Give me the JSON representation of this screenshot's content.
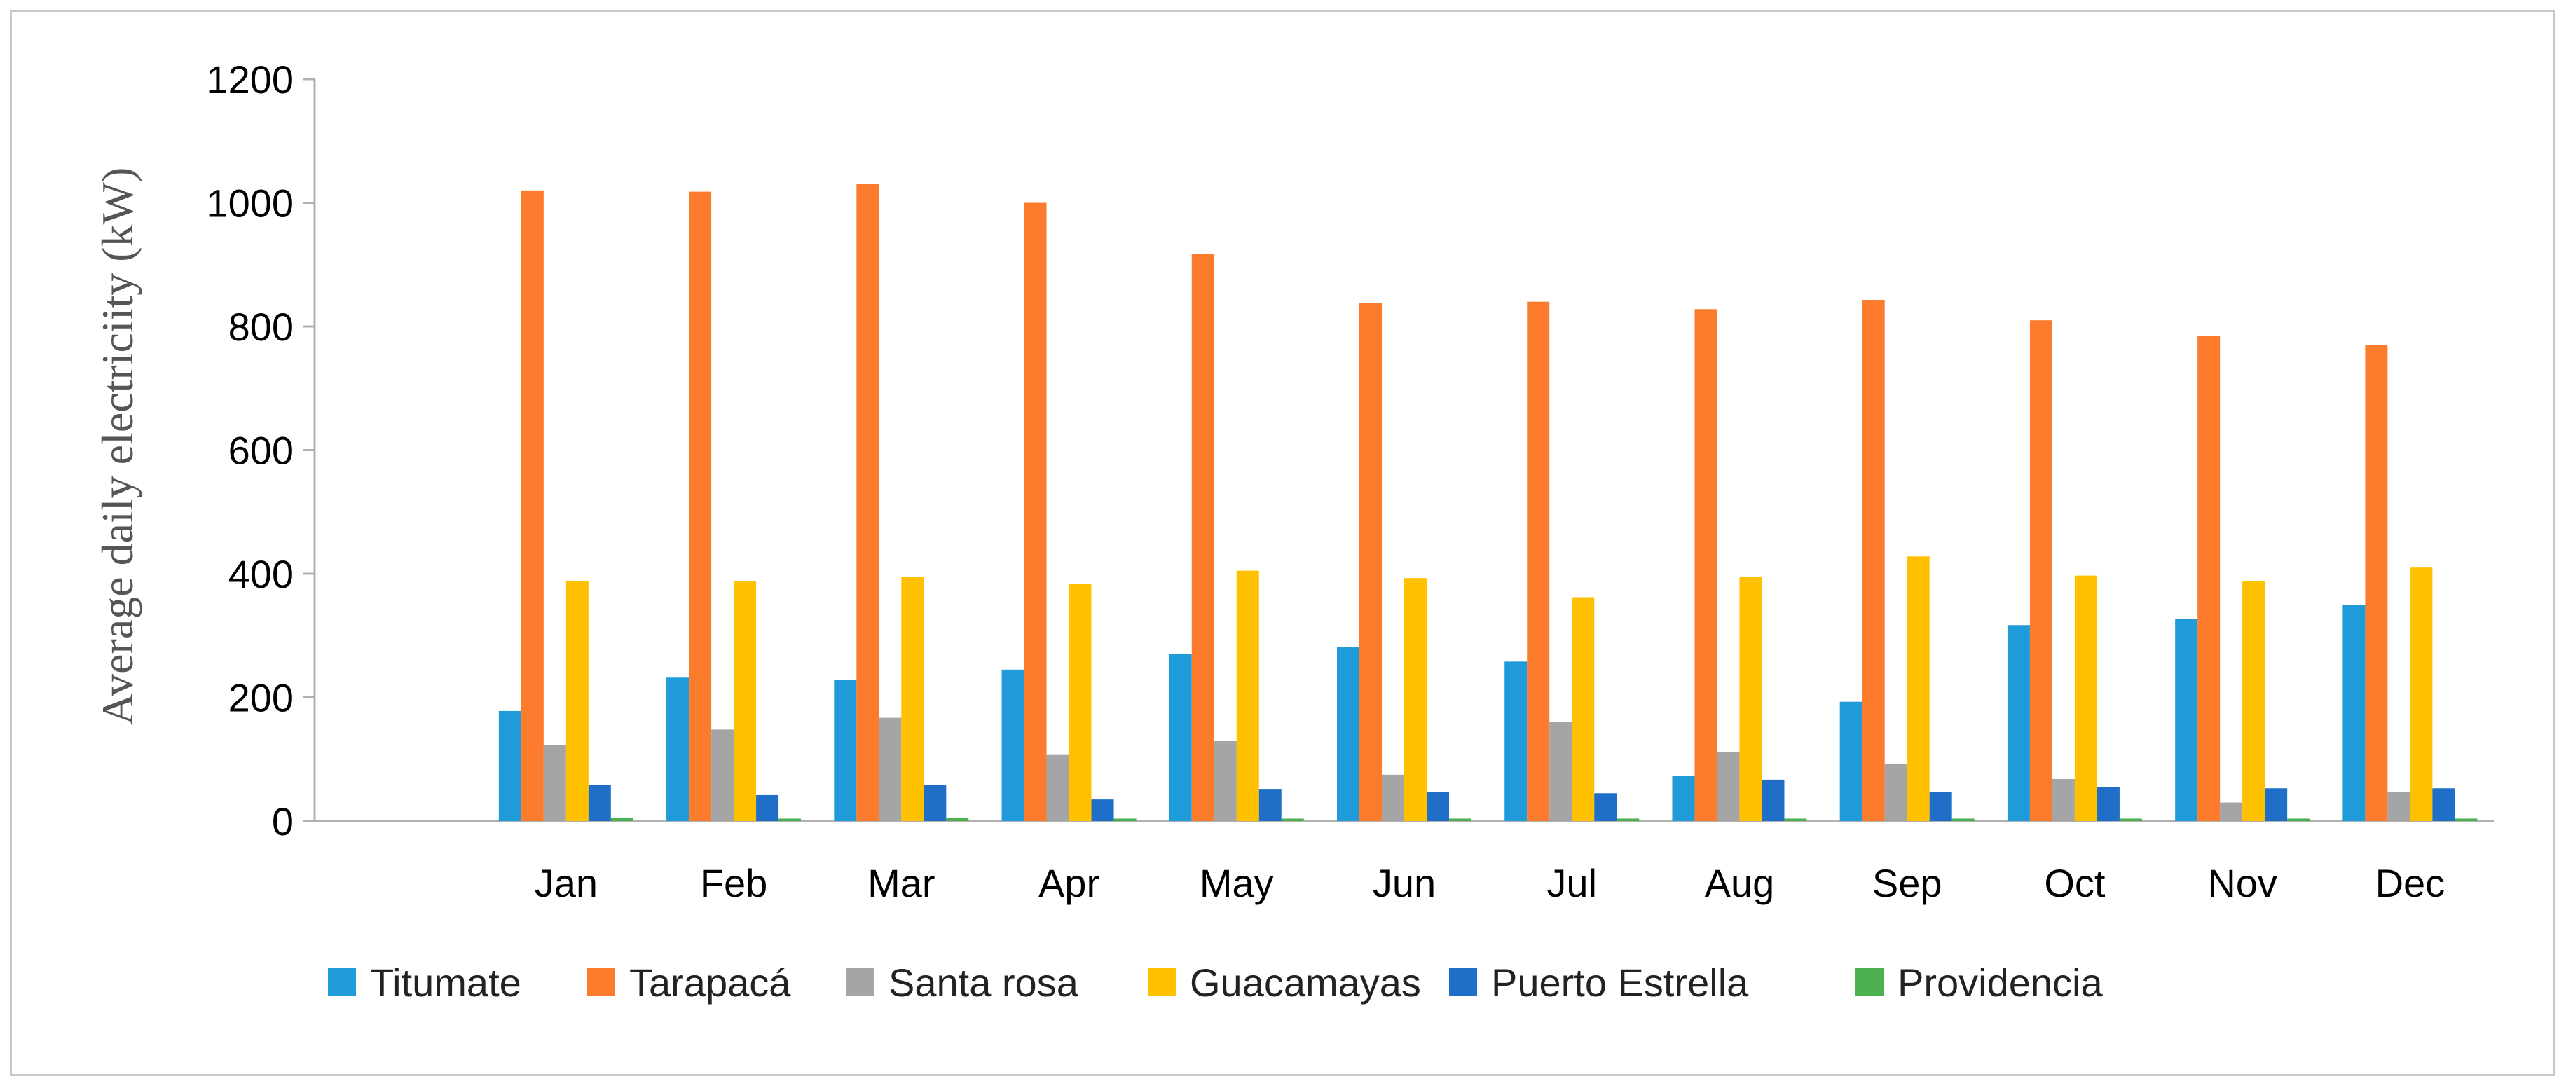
{
  "chart_data": {
    "type": "bar",
    "title": "",
    "xlabel": "",
    "ylabel": "Average daily electriciity (kW)",
    "ylim": [
      0,
      1200
    ],
    "yticks": [
      0,
      200,
      400,
      600,
      800,
      1000,
      1200
    ],
    "grid": false,
    "legend_position": "bottom",
    "categories": [
      "",
      "Jan",
      "Feb",
      "Mar",
      "Apr",
      "May",
      "Jun",
      "Jul",
      "Aug",
      "Sep",
      "Oct",
      "Nov",
      "Dec"
    ],
    "series": [
      {
        "name": "Titumate",
        "color": "#1f9bd9",
        "values": [
          0,
          178,
          232,
          228,
          245,
          270,
          282,
          258,
          73,
          193,
          317,
          327,
          350
        ]
      },
      {
        "name": "Tarapacá",
        "color": "#fd7b2c",
        "values": [
          0,
          1020,
          1018,
          1030,
          1000,
          917,
          838,
          840,
          828,
          843,
          810,
          785,
          770
        ]
      },
      {
        "name": "Santa rosa",
        "color": "#a5a5a5",
        "values": [
          0,
          123,
          148,
          167,
          108,
          130,
          75,
          160,
          112,
          93,
          68,
          30,
          47
        ]
      },
      {
        "name": "Guacamayas",
        "color": "#ffc000",
        "values": [
          0,
          388,
          388,
          395,
          383,
          405,
          393,
          362,
          395,
          428,
          397,
          388,
          410
        ]
      },
      {
        "name": "Puerto Estrella",
        "color": "#1f6fc8",
        "values": [
          0,
          58,
          42,
          58,
          35,
          52,
          47,
          45,
          67,
          47,
          55,
          53,
          53
        ]
      },
      {
        "name": "Providencia",
        "color": "#4caf50",
        "values": [
          0,
          5,
          4,
          5,
          4,
          4,
          4,
          4,
          4,
          4,
          4,
          4,
          4
        ]
      }
    ]
  }
}
